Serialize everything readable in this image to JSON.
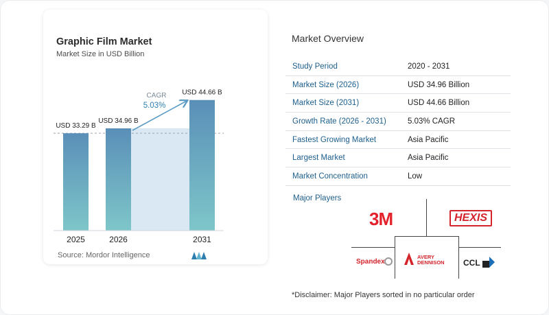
{
  "title": "Graphic Film Market",
  "subtitle": "Market Size in USD Billion",
  "source": "Source:  Mordor Intelligence",
  "chart_data": {
    "type": "bar",
    "categories": [
      "2025",
      "2026",
      "2031"
    ],
    "values": [
      33.29,
      34.96,
      44.66
    ],
    "value_labels": [
      "USD 33.29 B",
      "USD 34.96 B",
      "USD 44.66 B"
    ],
    "cagr_label": "CAGR",
    "cagr_value": "5.03%",
    "ylim": [
      0,
      46
    ],
    "colors": {
      "bar_top": "#5a8fb8",
      "bar_bottom": "#7ec6c9",
      "band": "#d9e8f2",
      "arrow": "#5b9bc4"
    }
  },
  "overview": {
    "title": "Market Overview",
    "rows": [
      {
        "key": "Study Period",
        "value": "2020 - 2031"
      },
      {
        "key": "Market Size (2026)",
        "value": "USD 34.96 Billion"
      },
      {
        "key": "Market Size (2031)",
        "value": "USD 44.66 Billion"
      },
      {
        "key": "Growth Rate (2026 - 2031)",
        "value": "5.03% CAGR"
      },
      {
        "key": "Fastest Growing Market",
        "value": "Asia Pacific"
      },
      {
        "key": "Largest Market",
        "value": "Asia Pacific"
      },
      {
        "key": "Market Concentration",
        "value": "Low"
      }
    ],
    "players_label": "Major Players",
    "players": {
      "p3m": "3M",
      "hexis": "HEXIS",
      "spandex": "Spandex",
      "avery1": "AVERY",
      "avery2": "DENNISON",
      "ccl": "CCL"
    },
    "disclaimer": "*Disclaimer: Major Players sorted in no particular order"
  }
}
